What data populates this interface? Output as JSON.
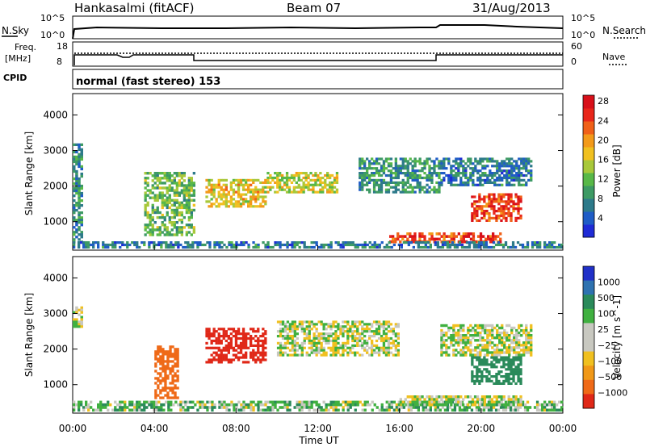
{
  "header": {
    "station": "Hankasalmi (fitACF)",
    "beam": "Beam 07",
    "date": "31/Aug/2013"
  },
  "noise_panel": {
    "left_label": "N.Sky",
    "left_ticks": [
      "10^5",
      "10^0"
    ],
    "right_label": "N.Search",
    "right_ticks": [
      "10^5",
      "10^0"
    ]
  },
  "freq_panel": {
    "left_label_1": "Freq.",
    "left_label_2": "[MHz]",
    "left_ticks": [
      "18",
      "8"
    ],
    "right_label": "Nave",
    "right_ticks": [
      "60",
      "0"
    ]
  },
  "cpid": {
    "label": "CPID",
    "text": "normal (fast stereo) 153"
  },
  "x_axis": {
    "title": "Time UT",
    "ticks": [
      "00:00",
      "04:00",
      "08:00",
      "12:00",
      "16:00",
      "20:00",
      "00:00"
    ]
  },
  "colors": {
    "power": [
      "#1f2bd6",
      "#1f5cc6",
      "#2d7a8a",
      "#3d9a64",
      "#58b848",
      "#a8c83a",
      "#f0c020",
      "#f39a1a",
      "#f06018",
      "#e8261a",
      "#d8101a"
    ],
    "velocity_pos": [
      "#2030c8",
      "#2e72b0",
      "#2a8a5a",
      "#40b040"
    ],
    "velocity_mid": "#c8c8c0",
    "velocity_neg": [
      "#f0c020",
      "#f09818",
      "#ef6a18",
      "#e02818"
    ]
  },
  "chart_data": [
    {
      "type": "heatmap",
      "name_on_chart": "",
      "xlabel": "Time UT",
      "ylabel": "Slant Range [km]",
      "xlim_hours": [
        0,
        24
      ],
      "ylim": [
        200,
        4600
      ],
      "yticks": [
        1000,
        2000,
        3000,
        4000
      ],
      "colorbar": {
        "label": "Power [dB]",
        "ticks": [
          "4",
          "8",
          "12",
          "16",
          "20",
          "24",
          "28"
        ],
        "range": [
          0,
          30
        ]
      },
      "regions": [
        {
          "t0": 0.0,
          "t1": 0.5,
          "r0": 400,
          "r1": 3200,
          "value": 8
        },
        {
          "t0": 3.5,
          "t1": 6.0,
          "r0": 600,
          "r1": 2400,
          "value": 12
        },
        {
          "t0": 6.5,
          "t1": 9.5,
          "r0": 1400,
          "r1": 2200,
          "value": 18
        },
        {
          "t0": 9.5,
          "t1": 13.0,
          "r0": 1800,
          "r1": 2400,
          "value": 16
        },
        {
          "t0": 14.0,
          "t1": 18.0,
          "r0": 1800,
          "r1": 2800,
          "value": 8
        },
        {
          "t0": 15.5,
          "t1": 21.0,
          "r0": 400,
          "r1": 700,
          "value": 26
        },
        {
          "t0": 19.5,
          "t1": 22.0,
          "r0": 1000,
          "r1": 1800,
          "value": 26
        },
        {
          "t0": 18.0,
          "t1": 22.5,
          "r0": 2000,
          "r1": 2800,
          "value": 6
        },
        {
          "t0": 0.0,
          "t1": 24.0,
          "r0": 250,
          "r1": 450,
          "value": 6
        }
      ]
    },
    {
      "type": "heatmap",
      "xlabel": "Time UT",
      "ylabel": "Slant Range [km]",
      "xlim_hours": [
        0,
        24
      ],
      "ylim": [
        200,
        4600
      ],
      "yticks": [
        1000,
        2000,
        3000,
        4000
      ],
      "colorbar": {
        "label": "Velocity [m s^-1]",
        "ticks": [
          "1000",
          "500",
          "100",
          "25",
          "−25",
          "−100",
          "−500",
          "−1000"
        ],
        "range": [
          -1000,
          1000
        ]
      },
      "regions": [
        {
          "t0": 0.0,
          "t1": 0.5,
          "r0": 2600,
          "r1": 3200,
          "value": 0
        },
        {
          "t0": 4.0,
          "t1": 5.2,
          "r0": 600,
          "r1": 2100,
          "value": -300
        },
        {
          "t0": 6.5,
          "t1": 9.5,
          "r0": 1600,
          "r1": 2600,
          "value": -800
        },
        {
          "t0": 10.0,
          "t1": 16.0,
          "r0": 1800,
          "r1": 2800,
          "value": 0
        },
        {
          "t0": 18.0,
          "t1": 22.5,
          "r0": 1800,
          "r1": 2700,
          "value": 0
        },
        {
          "t0": 19.5,
          "t1": 22.0,
          "r0": 1000,
          "r1": 1800,
          "value": 300
        },
        {
          "t0": 0.0,
          "t1": 24.0,
          "r0": 250,
          "r1": 550,
          "value": 60
        },
        {
          "t0": 16.0,
          "t1": 22.0,
          "r0": 400,
          "r1": 700,
          "value": 0
        }
      ]
    }
  ]
}
